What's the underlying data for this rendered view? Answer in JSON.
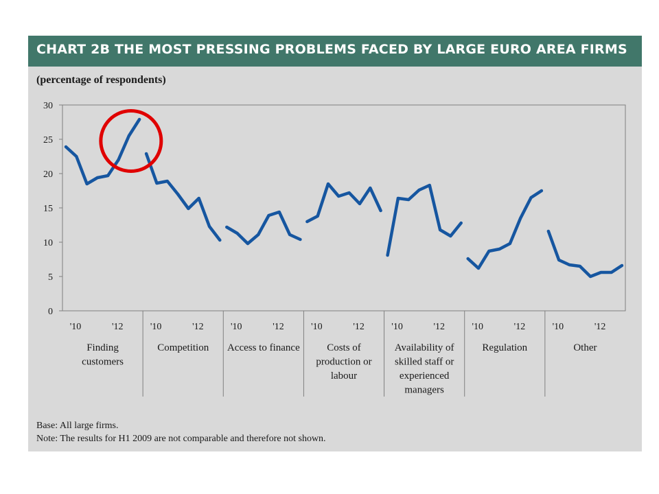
{
  "header": {
    "title": "CHART 2B  THE MOST PRESSING PROBLEMS FACED BY LARGE EURO AREA FIRMS"
  },
  "subtitle": "(percentage of respondents)",
  "notes": {
    "base": "Base: All large firms.",
    "note": "Note: The results for H1 2009 are not comparable and therefore not shown."
  },
  "colors": {
    "header_bg": "#41776a",
    "panel_bg": "#d9d9d9",
    "line": "#1656a0",
    "highlight": "#e00000"
  },
  "annotation": {
    "shape": "circle",
    "color": "#e00000",
    "marks": "Finding customers latest values"
  },
  "chart_data": {
    "type": "line",
    "ylim": [
      0,
      30
    ],
    "yticks": [
      0,
      5,
      10,
      15,
      20,
      25,
      30
    ],
    "grid": false,
    "panel_ticks": [
      "'10",
      "'12"
    ],
    "panels": [
      {
        "label_lines": [
          "Finding",
          "customers"
        ],
        "values": [
          23.9,
          22.5,
          18.5,
          19.4,
          19.7,
          22.0,
          25.5,
          27.9
        ]
      },
      {
        "label_lines": [
          "Competition"
        ],
        "values": [
          22.9,
          18.6,
          18.9,
          17.0,
          14.9,
          16.4,
          12.3,
          10.3
        ]
      },
      {
        "label_lines": [
          "Access to finance"
        ],
        "values": [
          12.2,
          11.3,
          9.8,
          11.1,
          13.9,
          14.4,
          11.1,
          10.4
        ]
      },
      {
        "label_lines": [
          "Costs of",
          "production or",
          "labour"
        ],
        "values": [
          13.0,
          13.8,
          18.5,
          16.7,
          17.2,
          15.6,
          17.9,
          14.6
        ]
      },
      {
        "label_lines": [
          "Availability of",
          "skilled staff or",
          "experienced",
          "managers"
        ],
        "values": [
          8.1,
          16.4,
          16.2,
          17.6,
          18.3,
          11.8,
          10.9,
          12.8
        ]
      },
      {
        "label_lines": [
          "Regulation"
        ],
        "values": [
          7.6,
          6.2,
          8.7,
          9.0,
          9.8,
          13.5,
          16.5,
          17.5
        ]
      },
      {
        "label_lines": [
          "Other"
        ],
        "values": [
          11.6,
          7.4,
          6.7,
          6.5,
          5.0,
          5.6,
          5.6,
          6.6
        ]
      }
    ]
  }
}
